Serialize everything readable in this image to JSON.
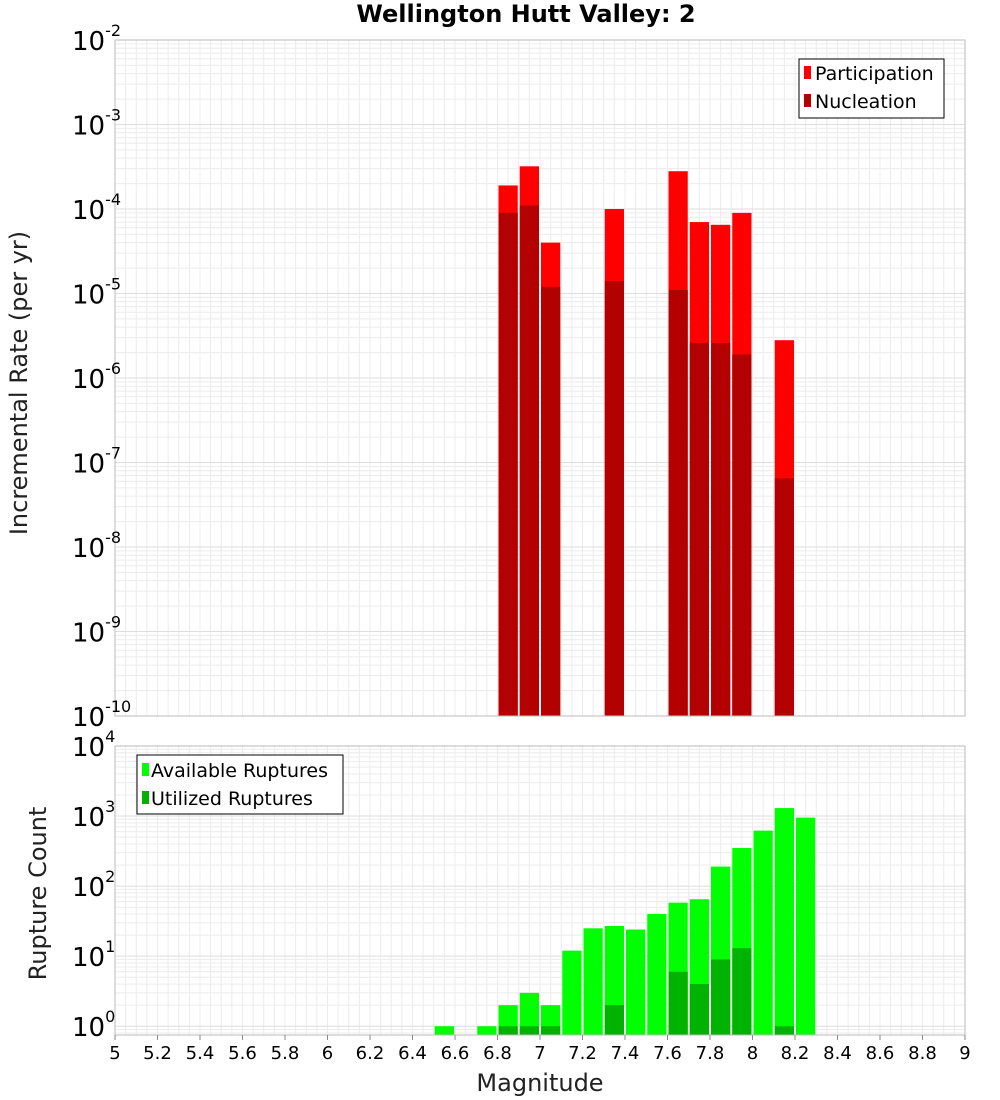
{
  "title": "Wellington Hutt Valley: 2",
  "chart_data": [
    {
      "type": "bar",
      "panel": "top",
      "title": "Wellington Hutt Valley: 2",
      "ylabel": "Incremental Rate (per yr)",
      "xlabel": "",
      "xlim": [
        5,
        9
      ],
      "ylim": [
        1e-10,
        0.01
      ],
      "yscale": "log",
      "ytick_bases": [
        "10",
        "10",
        "10",
        "10",
        "10",
        "10",
        "10",
        "10",
        "10"
      ],
      "ytick_exponents": [
        "-10",
        "-9",
        "-8",
        "-7",
        "-6",
        "-5",
        "-4",
        "-3",
        "-2"
      ],
      "grid": true,
      "legend_position": "top-right",
      "bar_width": 0.1,
      "series": [
        {
          "name": "Participation",
          "color": "#ff0000",
          "x": [
            6.85,
            6.95,
            7.05,
            7.35,
            7.65,
            7.75,
            7.85,
            7.95,
            8.15
          ],
          "values": [
            0.00019,
            0.00032,
            4e-05,
            0.0001,
            0.00028,
            7e-05,
            6.5e-05,
            9e-05,
            2.8e-06
          ]
        },
        {
          "name": "Nucleation",
          "color": "#b30000",
          "x": [
            6.85,
            6.95,
            7.05,
            7.35,
            7.65,
            7.75,
            7.85,
            7.95,
            8.15
          ],
          "values": [
            9e-05,
            0.00011,
            1.2e-05,
            1.4e-05,
            1.1e-05,
            2.6e-06,
            2.6e-06,
            1.9e-06,
            6.5e-08
          ]
        }
      ]
    },
    {
      "type": "bar",
      "panel": "bottom",
      "title": "",
      "ylabel": "Rupture Count",
      "xlabel": "Magnitude",
      "xlim": [
        5,
        9
      ],
      "ylim": [
        0.75,
        10000
      ],
      "yscale": "log",
      "ytick_bases": [
        "10",
        "10",
        "10",
        "10",
        "10"
      ],
      "ytick_exponents": [
        "0",
        "1",
        "2",
        "3",
        "4"
      ],
      "xtick_labels": [
        "5",
        "5.2",
        "5.4",
        "5.6",
        "5.8",
        "6",
        "6.2",
        "6.4",
        "6.6",
        "6.8",
        "7",
        "7.2",
        "7.4",
        "7.6",
        "7.8",
        "8",
        "8.2",
        "8.4",
        "8.6",
        "8.8",
        "9"
      ],
      "grid": true,
      "legend_position": "top-left",
      "bar_width": 0.1,
      "series": [
        {
          "name": "Available Ruptures",
          "color": "#00ff00",
          "x": [
            6.55,
            6.75,
            6.85,
            6.95,
            7.05,
            7.15,
            7.25,
            7.35,
            7.45,
            7.55,
            7.65,
            7.75,
            7.85,
            7.95,
            8.05,
            8.15,
            8.25
          ],
          "values": [
            1,
            1,
            2,
            3,
            2,
            12,
            25,
            27,
            24,
            40,
            58,
            65,
            190,
            350,
            620,
            1300,
            950
          ]
        },
        {
          "name": "Utilized Ruptures",
          "color": "#00b300",
          "x": [
            6.85,
            6.95,
            7.05,
            7.35,
            7.65,
            7.75,
            7.85,
            7.95,
            8.15
          ],
          "values": [
            1,
            1,
            1,
            2,
            6,
            4,
            9,
            13,
            1
          ]
        }
      ]
    }
  ]
}
